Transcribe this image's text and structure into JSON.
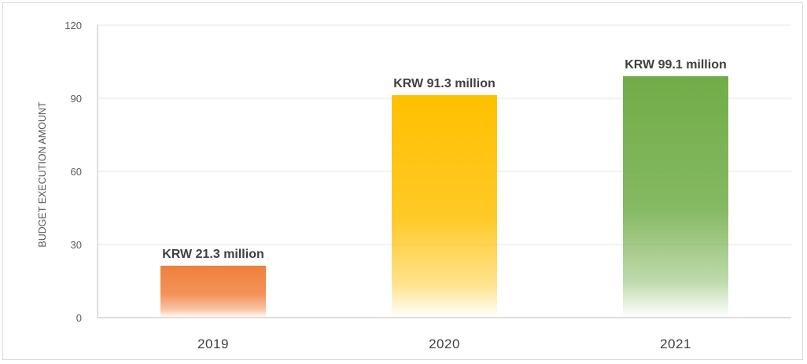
{
  "chart_data": {
    "type": "bar",
    "categories": [
      "2019",
      "2020",
      "2021"
    ],
    "values": [
      21.3,
      91.3,
      99.1
    ],
    "data_labels": [
      "KRW 21.3 million",
      "KRW 91.3 million",
      "KRW 99.1 million"
    ],
    "bar_colors": [
      "#f0803c",
      "#ffc000",
      "#70ad47"
    ],
    "title": "",
    "xlabel": "",
    "ylabel": "BUDGET EXECUTION AMOUNT",
    "ylim": [
      0,
      120
    ],
    "yticks": [
      0,
      30,
      60,
      90,
      120
    ],
    "grid": true,
    "legend": "none"
  }
}
